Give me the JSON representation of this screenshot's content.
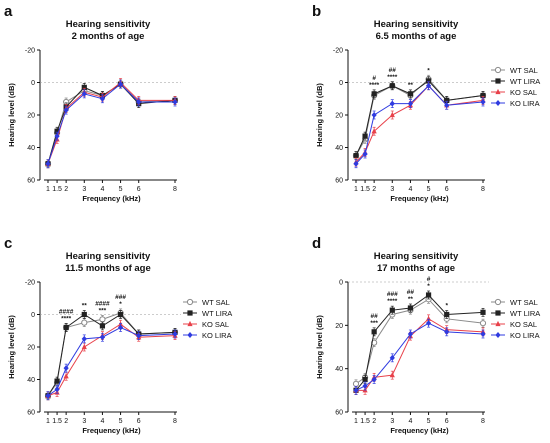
{
  "colors": {
    "wt_sal": "#8a8a8a",
    "wt_lira": "#222222",
    "ko_sal": "#e8414a",
    "ko_lira": "#2f3be0",
    "zero_line": "#9a9a9a"
  },
  "legend_entries": [
    "WT SAL",
    "WT LIRA",
    "KO SAL",
    "KO LIRA"
  ],
  "chart_data": [
    {
      "panel": "a",
      "type": "line",
      "title_line1": "Hearing sensitivity",
      "title_line2": "2 months of age",
      "xlabel": "Frequency (kHz)",
      "ylabel": "Hearing level (dB)",
      "x": [
        1,
        1.5,
        2,
        3,
        4,
        5,
        6,
        8
      ],
      "x_ticks": [
        "1",
        "1.5",
        "2",
        "3",
        "4",
        "5",
        "6",
        "8"
      ],
      "y_ticks": [
        -20,
        0,
        20,
        40,
        60
      ],
      "ylim": [
        60,
        -20
      ],
      "y_inverted": true,
      "series": [
        {
          "name": "WT SAL",
          "values": [
            50,
            31,
            12,
            5,
            8,
            1,
            12,
            11
          ]
        },
        {
          "name": "WT LIRA",
          "values": [
            50,
            30,
            15,
            3,
            8,
            1,
            13,
            11
          ]
        },
        {
          "name": "KO SAL",
          "values": [
            50,
            35,
            16,
            6,
            9,
            0,
            11,
            11
          ]
        },
        {
          "name": "KO LIRA",
          "values": [
            50,
            33,
            17,
            7,
            10,
            1,
            12,
            12
          ]
        }
      ],
      "annotations": [],
      "legend": "none"
    },
    {
      "panel": "b",
      "type": "line",
      "title_line1": "Hearing sensitivity",
      "title_line2": "6.5 months of age",
      "xlabel": "Frequency (kHz)",
      "ylabel": "Hearing level (dB)",
      "x": [
        1,
        1.5,
        2,
        3,
        4,
        5,
        6,
        8
      ],
      "x_ticks": [
        "1",
        "1.5",
        "2",
        "3",
        "4",
        "5",
        "6",
        "8"
      ],
      "y_ticks": [
        -20,
        0,
        20,
        40,
        60
      ],
      "ylim": [
        60,
        -20
      ],
      "y_inverted": true,
      "series": [
        {
          "name": "WT SAL",
          "values": [
            45,
            35,
            8,
            2,
            8,
            -2,
            11,
            8
          ]
        },
        {
          "name": "WT LIRA",
          "values": [
            45,
            33,
            7,
            2,
            7,
            -1,
            11,
            8
          ]
        },
        {
          "name": "KO SAL",
          "values": [
            49,
            43,
            30,
            20,
            14,
            2,
            14,
            11
          ]
        },
        {
          "name": "KO LIRA",
          "values": [
            50,
            44,
            20,
            13,
            13,
            2,
            14,
            12
          ]
        }
      ],
      "annotations": [
        {
          "x": 2,
          "lines": [
            "#",
            "****"
          ]
        },
        {
          "x": 3,
          "lines": [
            "##",
            "****"
          ]
        },
        {
          "x": 4,
          "lines": [
            "**"
          ]
        },
        {
          "x": 5,
          "lines": [
            "*"
          ]
        }
      ],
      "legend": "right"
    },
    {
      "panel": "c",
      "type": "line",
      "title_line1": "Hearing sensitivity",
      "title_line2": "11.5 months of age",
      "xlabel": "Frequency (kHz)",
      "ylabel": "Hearing level (dB)",
      "x": [
        1,
        1.5,
        2,
        3,
        4,
        5,
        6,
        8
      ],
      "x_ticks": [
        "1",
        "1.5",
        "2",
        "3",
        "4",
        "5",
        "6",
        "8"
      ],
      "y_ticks": [
        -20,
        0,
        20,
        40,
        60
      ],
      "ylim": [
        60,
        -20
      ],
      "y_inverted": true,
      "series": [
        {
          "name": "WT SAL",
          "values": [
            50,
            42,
            8,
            5,
            3,
            -1,
            12,
            11
          ]
        },
        {
          "name": "WT LIRA",
          "values": [
            50,
            41,
            8,
            0,
            7,
            0,
            12,
            11
          ]
        },
        {
          "name": "KO SAL",
          "values": [
            50,
            48,
            38,
            20,
            13,
            6,
            14,
            13
          ]
        },
        {
          "name": "KO LIRA",
          "values": [
            50,
            46,
            33,
            15,
            14,
            8,
            13,
            12
          ]
        }
      ],
      "annotations": [
        {
          "x": 2,
          "lines": [
            "####",
            "****"
          ]
        },
        {
          "x": 3,
          "lines": [
            "**"
          ]
        },
        {
          "x": 4,
          "lines": [
            "####",
            "***"
          ]
        },
        {
          "x": 5,
          "lines": [
            "###",
            "*"
          ]
        }
      ],
      "legend": "right"
    },
    {
      "panel": "d",
      "type": "line",
      "title_line1": "Hearing sensitivity",
      "title_line2": "17 months of age",
      "xlabel": "Frequency (kHz)",
      "ylabel": "Hearing level (dB)",
      "x": [
        1,
        1.5,
        2,
        3,
        4,
        5,
        6,
        8
      ],
      "x_ticks": [
        "1",
        "1.5",
        "2",
        "3",
        "4",
        "5",
        "6",
        "8"
      ],
      "y_ticks": [
        0,
        20,
        40,
        60
      ],
      "ylim": [
        60,
        0
      ],
      "y_inverted": true,
      "series": [
        {
          "name": "WT SAL",
          "values": [
            47,
            44,
            28,
            15,
            13,
            8,
            17,
            19
          ]
        },
        {
          "name": "WT LIRA",
          "values": [
            50,
            45,
            23,
            13,
            12,
            6,
            15,
            14
          ]
        },
        {
          "name": "KO SAL",
          "values": [
            50,
            50,
            44,
            43,
            25,
            17,
            22,
            23
          ]
        },
        {
          "name": "KO LIRA",
          "values": [
            50,
            48,
            45,
            35,
            24,
            19,
            23,
            24
          ]
        }
      ],
      "annotations": [
        {
          "x": 2,
          "lines": [
            "##",
            "***"
          ]
        },
        {
          "x": 3,
          "lines": [
            "###",
            "****"
          ]
        },
        {
          "x": 4,
          "lines": [
            "##",
            "**"
          ]
        },
        {
          "x": 5,
          "lines": [
            "#",
            "*"
          ]
        },
        {
          "x": 6,
          "lines": [
            "*"
          ]
        }
      ],
      "legend": "right"
    }
  ]
}
